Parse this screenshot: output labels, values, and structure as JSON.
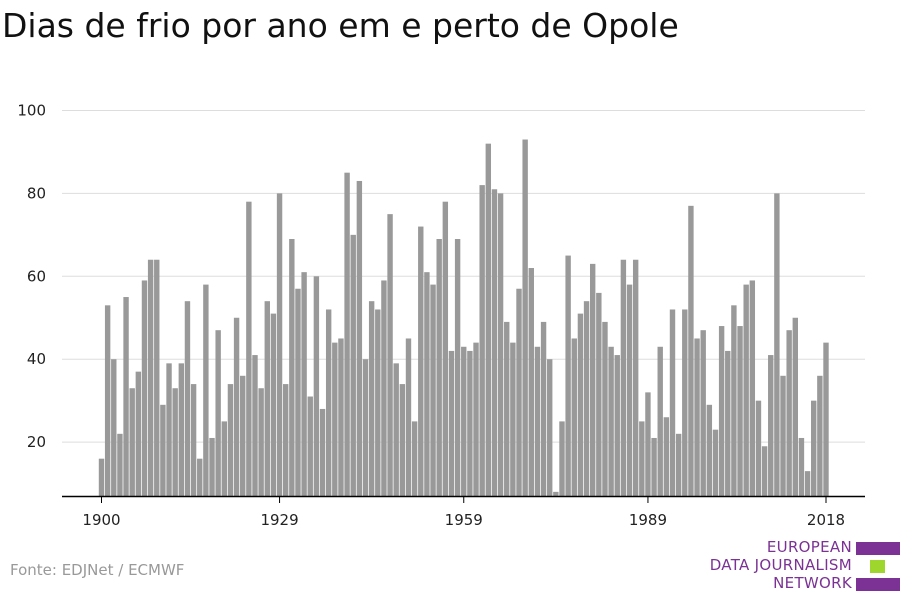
{
  "chart_data": {
    "type": "bar",
    "title": "Dias de frio por ano em e perto de Opole",
    "xlabel": "",
    "ylabel": "",
    "x_start": 1900,
    "x_end": 2018,
    "ylim": [
      7,
      100
    ],
    "y_ticks": [
      20,
      40,
      60,
      80,
      100
    ],
    "x_ticks": [
      1900,
      1929,
      1959,
      1989,
      2018
    ],
    "grid": true,
    "bar_color": "#999999",
    "values": [
      16,
      53,
      40,
      22,
      55,
      33,
      37,
      59,
      64,
      64,
      29,
      39,
      33,
      39,
      54,
      34,
      16,
      58,
      21,
      47,
      25,
      34,
      50,
      36,
      78,
      41,
      33,
      54,
      51,
      80,
      34,
      69,
      57,
      61,
      31,
      60,
      28,
      52,
      44,
      45,
      85,
      70,
      83,
      40,
      54,
      52,
      59,
      75,
      39,
      34,
      45,
      25,
      72,
      61,
      58,
      69,
      78,
      42,
      69,
      43,
      42,
      44,
      82,
      92,
      81,
      80,
      49,
      44,
      57,
      93,
      62,
      43,
      49,
      40,
      8,
      25,
      65,
      45,
      51,
      54,
      63,
      56,
      49,
      43,
      41,
      64,
      58,
      64,
      25,
      32,
      21,
      43,
      26,
      52,
      22,
      52,
      77,
      45,
      47,
      29,
      23,
      48,
      42,
      53,
      48,
      58,
      59,
      30,
      19,
      41,
      80,
      36,
      47,
      50,
      21,
      13,
      30,
      36,
      44
    ]
  },
  "source": "Fonte: EDJNet / ECMWF",
  "logo": {
    "line1": "EUROPEAN",
    "line2": "DATA JOURNALISM",
    "line3": "NETWORK",
    "purple": "#7b3294",
    "green": "#9fd62e"
  }
}
